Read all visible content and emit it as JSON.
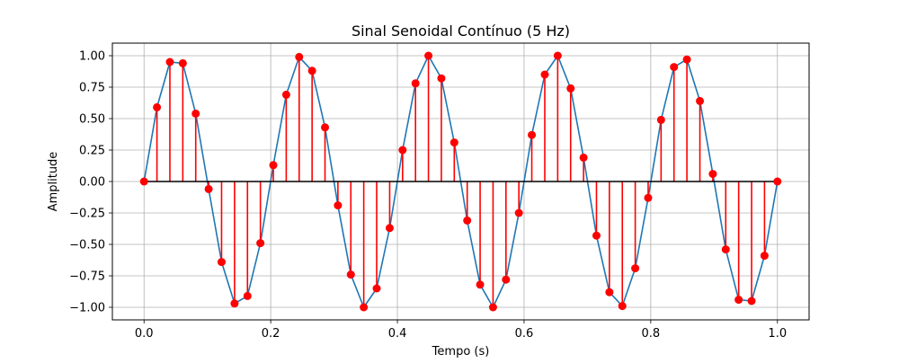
{
  "chart_data": {
    "type": "line",
    "title": "Sinal Senoidal Contínuo (5 Hz)",
    "xlabel": "Tempo (s)",
    "ylabel": "Amplitude",
    "xlim": [
      -0.05,
      1.05
    ],
    "ylim": [
      -1.1,
      1.1
    ],
    "xticks": [
      0.0,
      0.2,
      0.4,
      0.6,
      0.8,
      1.0
    ],
    "xtick_labels": [
      "0.0",
      "0.2",
      "0.4",
      "0.6",
      "0.8",
      "1.0"
    ],
    "yticks": [
      -1.0,
      -0.75,
      -0.5,
      -0.25,
      0.0,
      0.25,
      0.5,
      0.75,
      1.0
    ],
    "ytick_labels": [
      "−1.00",
      "−0.75",
      "−0.50",
      "−0.25",
      "0.00",
      "0.25",
      "0.50",
      "0.75",
      "1.00"
    ],
    "grid": true,
    "legend": "none",
    "series": [
      {
        "style": "line",
        "color": "#1f77b4",
        "x": [
          0,
          0.0204,
          0.0408,
          0.0612,
          0.0816,
          0.102,
          0.1224,
          0.1429,
          0.1633,
          0.1837,
          0.2041,
          0.2245,
          0.2449,
          0.2653,
          0.2857,
          0.3061,
          0.3265,
          0.3469,
          0.3673,
          0.3878,
          0.4082,
          0.4286,
          0.449,
          0.4694,
          0.4898,
          0.5102,
          0.5306,
          0.551,
          0.5714,
          0.5918,
          0.6122,
          0.6327,
          0.6531,
          0.6735,
          0.6939,
          0.7143,
          0.7347,
          0.7551,
          0.7755,
          0.7959,
          0.8163,
          0.8367,
          0.8571,
          0.8776,
          0.898,
          0.9184,
          0.9388,
          0.9592,
          0.9796,
          1.0
        ],
        "y": [
          0,
          0.59,
          0.95,
          0.94,
          0.54,
          -0.06,
          -0.64,
          -0.97,
          -0.91,
          -0.49,
          0.13,
          0.69,
          0.99,
          0.88,
          0.43,
          -0.19,
          -0.74,
          -1.0,
          -0.85,
          -0.37,
          0.25,
          0.78,
          1.0,
          0.82,
          0.31,
          -0.31,
          -0.82,
          -1.0,
          -0.78,
          -0.25,
          0.37,
          0.85,
          1.0,
          0.74,
          0.19,
          -0.43,
          -0.88,
          -0.99,
          -0.69,
          -0.13,
          0.49,
          0.91,
          0.97,
          0.64,
          0.06,
          -0.54,
          -0.94,
          -0.95,
          -0.59,
          0
        ]
      },
      {
        "style": "stem",
        "color": "#ff0000",
        "baseline_color": "#000000",
        "x": [
          0,
          0.0204,
          0.0408,
          0.0612,
          0.0816,
          0.102,
          0.1224,
          0.1429,
          0.1633,
          0.1837,
          0.2041,
          0.2245,
          0.2449,
          0.2653,
          0.2857,
          0.3061,
          0.3265,
          0.3469,
          0.3673,
          0.3878,
          0.4082,
          0.4286,
          0.449,
          0.4694,
          0.4898,
          0.5102,
          0.5306,
          0.551,
          0.5714,
          0.5918,
          0.6122,
          0.6327,
          0.6531,
          0.6735,
          0.6939,
          0.7143,
          0.7347,
          0.7551,
          0.7755,
          0.7959,
          0.8163,
          0.8367,
          0.8571,
          0.8776,
          0.898,
          0.9184,
          0.9388,
          0.9592,
          0.9796,
          1.0
        ],
        "y": [
          0,
          0.59,
          0.95,
          0.94,
          0.54,
          -0.06,
          -0.64,
          -0.97,
          -0.91,
          -0.49,
          0.13,
          0.69,
          0.99,
          0.88,
          0.43,
          -0.19,
          -0.74,
          -1.0,
          -0.85,
          -0.37,
          0.25,
          0.78,
          1.0,
          0.82,
          0.31,
          -0.31,
          -0.82,
          -1.0,
          -0.78,
          -0.25,
          0.37,
          0.85,
          1.0,
          0.74,
          0.19,
          -0.43,
          -0.88,
          -0.99,
          -0.69,
          -0.13,
          0.49,
          0.91,
          0.97,
          0.64,
          0.06,
          -0.54,
          -0.94,
          -0.95,
          -0.59,
          0
        ]
      }
    ]
  }
}
